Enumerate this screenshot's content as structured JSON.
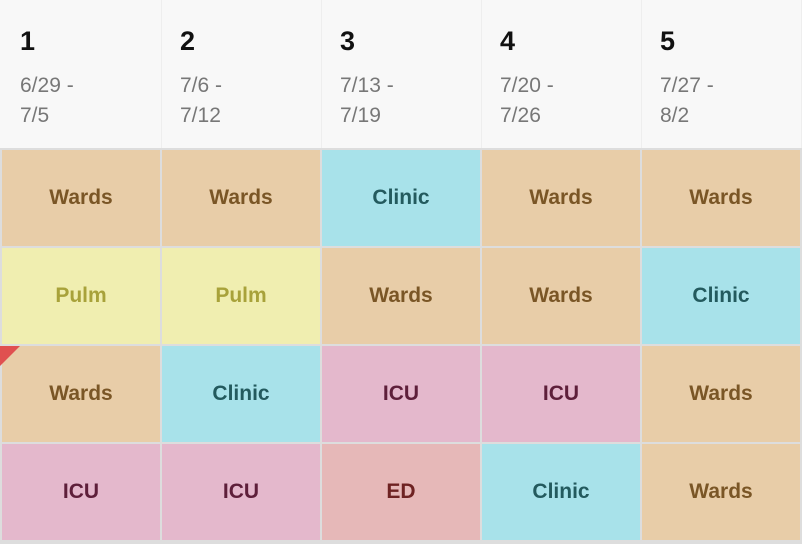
{
  "columns": [
    {
      "number": "1",
      "start": "6/29 -",
      "end": "7/5"
    },
    {
      "number": "2",
      "start": "7/6 -",
      "end": "7/12"
    },
    {
      "number": "3",
      "start": "7/13 -",
      "end": "7/19"
    },
    {
      "number": "4",
      "start": "7/20 -",
      "end": "7/26"
    },
    {
      "number": "5",
      "start": "7/27 -",
      "end": "8/2"
    }
  ],
  "rows": [
    [
      {
        "label": "Wards",
        "bg": "#e8cda8",
        "fg": "#7a5626"
      },
      {
        "label": "Wards",
        "bg": "#e8cda8",
        "fg": "#7a5626"
      },
      {
        "label": "Clinic",
        "bg": "#a8e2ea",
        "fg": "#235a5e"
      },
      {
        "label": "Wards",
        "bg": "#e8cda8",
        "fg": "#7a5626"
      },
      {
        "label": "Wards",
        "bg": "#e8cda8",
        "fg": "#7a5626"
      }
    ],
    [
      {
        "label": "Pulm",
        "bg": "#f0eeb0",
        "fg": "#a8a23a"
      },
      {
        "label": "Pulm",
        "bg": "#f0eeb0",
        "fg": "#a8a23a"
      },
      {
        "label": "Wards",
        "bg": "#e8cda8",
        "fg": "#7a5626"
      },
      {
        "label": "Wards",
        "bg": "#e8cda8",
        "fg": "#7a5626"
      },
      {
        "label": "Clinic",
        "bg": "#a8e2ea",
        "fg": "#235a5e"
      }
    ],
    [
      {
        "label": "Wards",
        "bg": "#e8cda8",
        "fg": "#7a5626"
      },
      {
        "label": "Clinic",
        "bg": "#a8e2ea",
        "fg": "#235a5e"
      },
      {
        "label": "ICU",
        "bg": "#e4b8cc",
        "fg": "#5e1f3a"
      },
      {
        "label": "ICU",
        "bg": "#e4b8cc",
        "fg": "#5e1f3a"
      },
      {
        "label": "Wards",
        "bg": "#e8cda8",
        "fg": "#7a5626"
      }
    ],
    [
      {
        "label": "ICU",
        "bg": "#e4b8cc",
        "fg": "#5e1f3a"
      },
      {
        "label": "ICU",
        "bg": "#e4b8cc",
        "fg": "#5e1f3a"
      },
      {
        "label": "ED",
        "bg": "#e6b8b8",
        "fg": "#6e2222"
      },
      {
        "label": "Clinic",
        "bg": "#a8e2ea",
        "fg": "#235a5e"
      },
      {
        "label": "Wards",
        "bg": "#e8cda8",
        "fg": "#7a5626"
      }
    ]
  ]
}
